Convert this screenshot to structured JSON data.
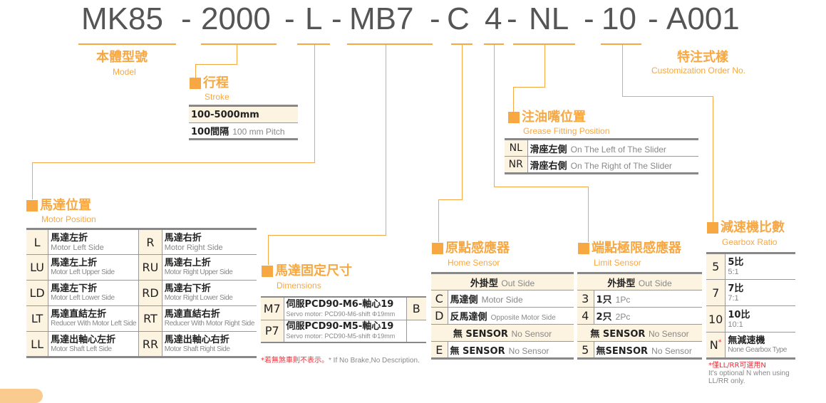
{
  "model_code": {
    "segments": [
      "MK85",
      "-",
      "2000",
      "-",
      "L",
      "-",
      "MB7",
      "-",
      "C",
      "4",
      "-",
      "NL",
      "-",
      "10",
      "-",
      "A001"
    ]
  },
  "colors": {
    "accent": "#f7a842",
    "header_bg": "#fdf3e1",
    "rule": "#888888",
    "note_red": "#e8303a"
  },
  "model": {
    "title": "本體型號",
    "subtitle": "Model"
  },
  "customization": {
    "title": "特注式樣",
    "subtitle": "Customization Order No."
  },
  "stroke": {
    "title": "行程",
    "subtitle": "Stroke",
    "range": "100-5000mm",
    "pitch_zh": "100間隔",
    "pitch_en": "100 mm Pitch"
  },
  "motor_position": {
    "title": "馬達位置",
    "subtitle": "Motor Position",
    "rows": [
      [
        {
          "code": "L",
          "zh": "馬達左折",
          "en": "Motor Left Side"
        },
        {
          "code": "R",
          "zh": "馬達右折",
          "en": "Motor Right Side"
        }
      ],
      [
        {
          "code": "LU",
          "zh": "馬達左上折",
          "en": "Motor Left Upper Side"
        },
        {
          "code": "RU",
          "zh": "馬達右上折",
          "en": "Motor Right Upper Side"
        }
      ],
      [
        {
          "code": "LD",
          "zh": "馬達左下折",
          "en": "Motor Left Lower Side"
        },
        {
          "code": "RD",
          "zh": "馬達右下折",
          "en": "Motor Right Lower Side"
        }
      ],
      [
        {
          "code": "LT",
          "zh": "馬達直結左折",
          "en": "Reducer With Motor Left Side"
        },
        {
          "code": "RT",
          "zh": "馬達直結右折",
          "en": "Reducer With Motor Right Side"
        }
      ],
      [
        {
          "code": "LL",
          "zh": "馬達出軸心左折",
          "en": "Motor Shaft Left Side"
        },
        {
          "code": "RR",
          "zh": "馬達出軸心右折",
          "en": "Motor Shaft Right Side"
        }
      ]
    ]
  },
  "dimensions": {
    "title": "馬達固定尺寸",
    "subtitle": "Dimensions",
    "rows": [
      {
        "code": "M7",
        "zh": "伺服PCD90-M6-軸心19",
        "en": "Servo motor: PCD90-M6-shift Φ19mm"
      },
      {
        "code": "P7",
        "zh": "伺服PCD90-M5-軸心19",
        "en": "Servo motor: PCD90-M5-shift Φ19mm"
      }
    ],
    "brake_code": "B",
    "note_zh": "*若無煞車則不表示。",
    "note_en": "* If No Brake,No Description."
  },
  "home_sensor": {
    "title": "原點感應器",
    "subtitle": "Home Sensor",
    "header1_zh": "外掛型",
    "header1_en": "Out Side",
    "rows": [
      {
        "code": "C",
        "zh": "馬達側",
        "en": "Motor Side"
      },
      {
        "code": "D",
        "zh": "反馬達側",
        "en": "Opposite Motor Side"
      }
    ],
    "header2_zh": "無 SENSOR",
    "header2_en": "No Sensor",
    "none_row": {
      "code": "E",
      "zh": "無 SENSOR",
      "en": "No Sensor"
    }
  },
  "limit_sensor": {
    "title": "端點極限感應器",
    "subtitle": "Limit Sensor",
    "header1_zh": "外掛型",
    "header1_en": "Out Side",
    "rows": [
      {
        "code": "3",
        "zh": "1只",
        "en": "1Pc"
      },
      {
        "code": "4",
        "zh": "2只",
        "en": "2Pc"
      }
    ],
    "header2_zh": "無 SENSOR",
    "header2_en": "No Sensor",
    "none_row": {
      "code": "5",
      "zh": "無SENSOR",
      "en": "No Sensor"
    }
  },
  "grease": {
    "title": "注油嘴位置",
    "subtitle": "Grease Fitting Position",
    "rows": [
      {
        "code": "NL",
        "zh": "滑座左側",
        "en": "On The Left of The Slider"
      },
      {
        "code": "NR",
        "zh": "滑座右側",
        "en": "On The Right of The Slider"
      }
    ]
  },
  "gearbox": {
    "title": "減速機比數",
    "subtitle": "Gearbox Ratio",
    "rows": [
      {
        "code": "5",
        "zh": "5比",
        "en": "5:1"
      },
      {
        "code": "7",
        "zh": "7比",
        "en": "7:1"
      },
      {
        "code": "10",
        "zh": "10比",
        "en": "10:1"
      },
      {
        "code": "N",
        "mark": "*",
        "zh": "無減速機",
        "en": "None Gearbox Type"
      }
    ],
    "note_zh": "*僅LL/RR可選用N",
    "note_en": "It's optional N when using LL/RR only."
  }
}
